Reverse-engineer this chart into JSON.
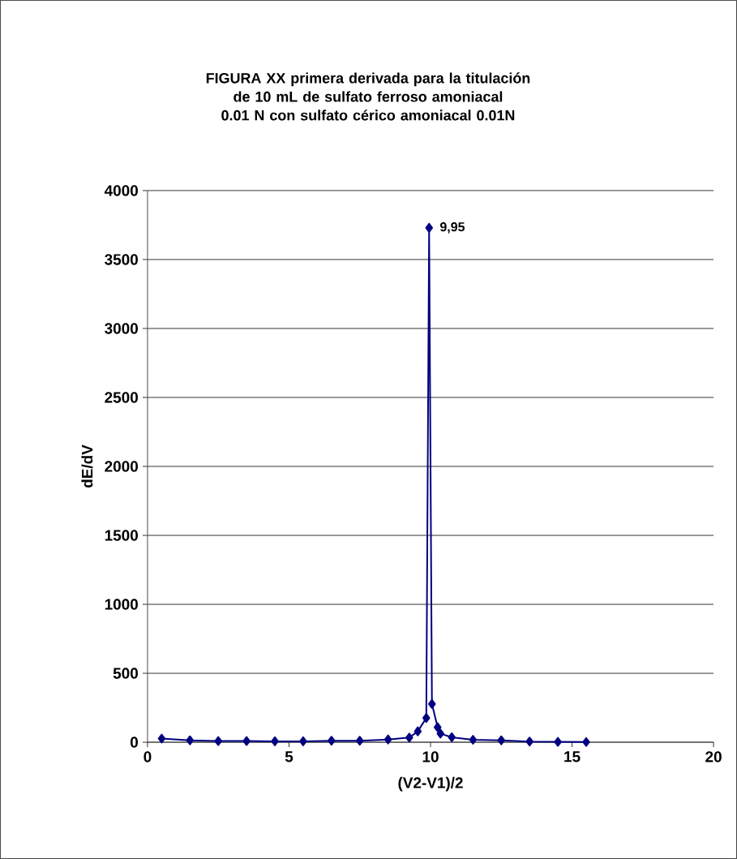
{
  "chart_data": {
    "type": "line",
    "title": "FIGURA XX   primera  derivada para la titulación de 10 mL de sulfato ferroso amoniacal 0.01 N con sulfato cérico amoniacal 0.01N",
    "xlabel": "(V2-V1)/2",
    "ylabel": "dE/dV",
    "x": [
      0.5,
      1.5,
      2.5,
      3.5,
      4.5,
      5.5,
      6.5,
      7.5,
      8.5,
      9.25,
      9.55,
      9.85,
      9.95,
      10.05,
      10.25,
      10.35,
      10.75,
      11.5,
      12.5,
      13.5,
      14.5,
      15.5
    ],
    "series": [
      {
        "color": "#000080",
        "values": [
          27,
          14,
          9,
          9,
          7,
          7,
          11,
          11,
          20,
          34,
          79,
          176,
          3730,
          278,
          109,
          63,
          36,
          18,
          14,
          5,
          3,
          2
        ]
      }
    ],
    "xlim": [
      0,
      20
    ],
    "xticks": [
      0,
      5,
      10,
      15,
      20
    ],
    "ylim": [
      0,
      4000
    ],
    "yticks": [
      0,
      500,
      1000,
      1500,
      2000,
      2500,
      3000,
      3500,
      4000
    ],
    "grid": "y",
    "marker": "diamond",
    "line_style": "solid",
    "annotations": [
      {
        "text": "9,95",
        "x": 9.95,
        "y": 3730
      }
    ]
  }
}
